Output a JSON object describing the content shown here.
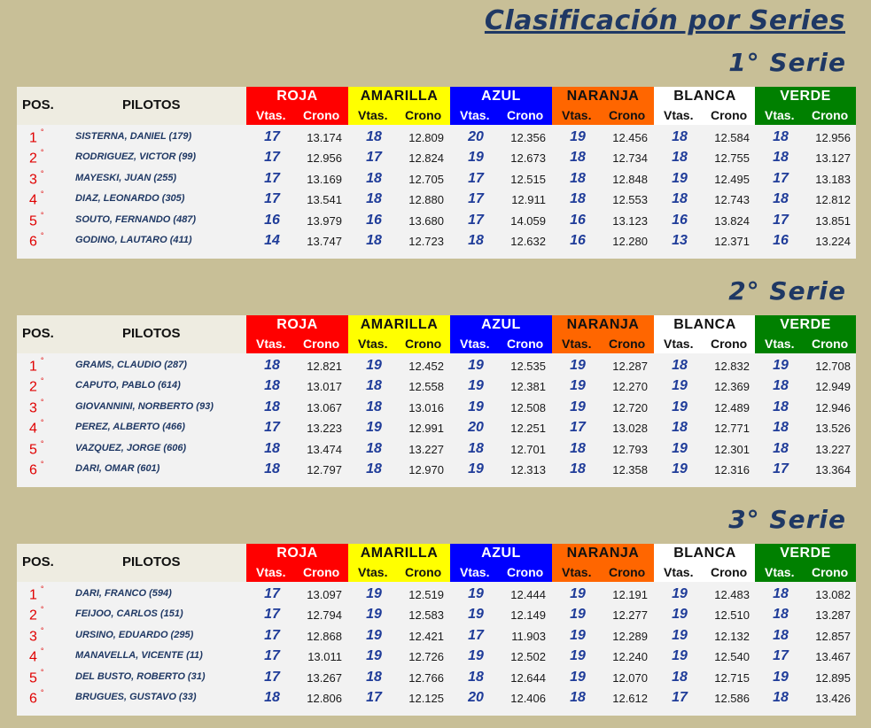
{
  "title": "Clasificación por Series",
  "header": {
    "pos": "POS.",
    "pilotos": "PILOTOS",
    "vtas": "Vtas.",
    "crono": "Crono"
  },
  "colors": [
    {
      "name": "ROJA",
      "bg": "#ff0000",
      "fg": "#ffffff"
    },
    {
      "name": "AMARILLA",
      "bg": "#ffff00",
      "fg": "#111111"
    },
    {
      "name": "AZUL",
      "bg": "#0000ff",
      "fg": "#ffffff"
    },
    {
      "name": "NARANJA",
      "bg": "#ff6600",
      "fg": "#111111"
    },
    {
      "name": "BLANCA",
      "bg": "#ffffff",
      "fg": "#111111"
    },
    {
      "name": "VERDE",
      "bg": "#008000",
      "fg": "#ffffff"
    }
  ],
  "series": [
    {
      "title": "1° Serie",
      "rows": [
        {
          "pos": "1",
          "name": "SISTERNA, DANIEL (179)",
          "v": [
            "17",
            "18",
            "20",
            "19",
            "18",
            "18"
          ],
          "c": [
            "13.174",
            "12.809",
            "12.356",
            "12.456",
            "12.584",
            "12.956"
          ]
        },
        {
          "pos": "2",
          "name": "RODRIGUEZ, VICTOR (99)",
          "v": [
            "17",
            "17",
            "19",
            "18",
            "18",
            "18"
          ],
          "c": [
            "12.956",
            "12.824",
            "12.673",
            "12.734",
            "12.755",
            "13.127"
          ]
        },
        {
          "pos": "3",
          "name": "MAYESKI, JUAN (255)",
          "v": [
            "17",
            "18",
            "17",
            "18",
            "19",
            "17"
          ],
          "c": [
            "13.169",
            "12.705",
            "12.515",
            "12.848",
            "12.495",
            "13.183"
          ]
        },
        {
          "pos": "4",
          "name": "DIAZ, LEONARDO (305)",
          "v": [
            "17",
            "18",
            "17",
            "18",
            "18",
            "18"
          ],
          "c": [
            "13.541",
            "12.880",
            "12.911",
            "12.553",
            "12.743",
            "12.812"
          ]
        },
        {
          "pos": "5",
          "name": "SOUTO, FERNANDO  (487)",
          "v": [
            "16",
            "16",
            "17",
            "16",
            "16",
            "17"
          ],
          "c": [
            "13.979",
            "13.680",
            "14.059",
            "13.123",
            "13.824",
            "13.851"
          ]
        },
        {
          "pos": "6",
          "name": "GODINO, LAUTARO (411)",
          "v": [
            "14",
            "18",
            "18",
            "16",
            "13",
            "16"
          ],
          "c": [
            "13.747",
            "12.723",
            "12.632",
            "12.280",
            "12.371",
            "13.224"
          ]
        }
      ]
    },
    {
      "title": "2° Serie",
      "rows": [
        {
          "pos": "1",
          "name": "GRAMS, CLAUDIO (287)",
          "v": [
            "18",
            "19",
            "19",
            "19",
            "18",
            "19"
          ],
          "c": [
            "12.821",
            "12.452",
            "12.535",
            "12.287",
            "12.832",
            "12.708"
          ]
        },
        {
          "pos": "2",
          "name": "CAPUTO, PABLO  (614)",
          "v": [
            "18",
            "18",
            "19",
            "19",
            "19",
            "18"
          ],
          "c": [
            "13.017",
            "12.558",
            "12.381",
            "12.270",
            "12.369",
            "12.949"
          ]
        },
        {
          "pos": "3",
          "name": "GIOVANNINI, NORBERTO (93)",
          "v": [
            "18",
            "18",
            "19",
            "19",
            "19",
            "18"
          ],
          "c": [
            "13.067",
            "13.016",
            "12.508",
            "12.720",
            "12.489",
            "12.946"
          ]
        },
        {
          "pos": "4",
          "name": "PEREZ, ALBERTO (466)",
          "v": [
            "17",
            "19",
            "20",
            "17",
            "18",
            "18"
          ],
          "c": [
            "13.223",
            "12.991",
            "12.251",
            "13.028",
            "12.771",
            "13.526"
          ]
        },
        {
          "pos": "5",
          "name": "VAZQUEZ, JORGE (606)",
          "v": [
            "18",
            "18",
            "18",
            "18",
            "19",
            "18"
          ],
          "c": [
            "13.474",
            "13.227",
            "12.701",
            "12.793",
            "12.301",
            "13.227"
          ]
        },
        {
          "pos": "6",
          "name": "DARI, OMAR (601)",
          "v": [
            "18",
            "18",
            "19",
            "18",
            "19",
            "17"
          ],
          "c": [
            "12.797",
            "12.970",
            "12.313",
            "12.358",
            "12.316",
            "13.364"
          ]
        }
      ]
    },
    {
      "title": "3° Serie",
      "rows": [
        {
          "pos": "1",
          "name": "DARI, FRANCO (594)",
          "v": [
            "17",
            "19",
            "19",
            "19",
            "19",
            "18"
          ],
          "c": [
            "13.097",
            "12.519",
            "12.444",
            "12.191",
            "12.483",
            "13.082"
          ]
        },
        {
          "pos": "2",
          "name": "FEIJOO, CARLOS (151)",
          "v": [
            "17",
            "19",
            "19",
            "19",
            "19",
            "18"
          ],
          "c": [
            "12.794",
            "12.583",
            "12.149",
            "12.277",
            "12.510",
            "13.287"
          ]
        },
        {
          "pos": "3",
          "name": "URSINO, EDUARDO (295)",
          "v": [
            "17",
            "19",
            "17",
            "19",
            "19",
            "18"
          ],
          "c": [
            "12.868",
            "12.421",
            "11.903",
            "12.289",
            "12.132",
            "12.857"
          ]
        },
        {
          "pos": "4",
          "name": "MANAVELLA, VICENTE (11)",
          "v": [
            "17",
            "19",
            "19",
            "19",
            "19",
            "17"
          ],
          "c": [
            "13.011",
            "12.726",
            "12.502",
            "12.240",
            "12.540",
            "13.467"
          ]
        },
        {
          "pos": "5",
          "name": "DEL BUSTO, ROBERTO (31)",
          "v": [
            "17",
            "18",
            "18",
            "19",
            "18",
            "19"
          ],
          "c": [
            "13.267",
            "12.766",
            "12.644",
            "12.070",
            "12.715",
            "12.895"
          ]
        },
        {
          "pos": "6",
          "name": "BRUGUES, GUSTAVO (33)",
          "v": [
            "18",
            "17",
            "20",
            "18",
            "17",
            "18"
          ],
          "c": [
            "12.806",
            "12.125",
            "12.406",
            "12.612",
            "12.586",
            "13.426"
          ]
        }
      ]
    }
  ]
}
